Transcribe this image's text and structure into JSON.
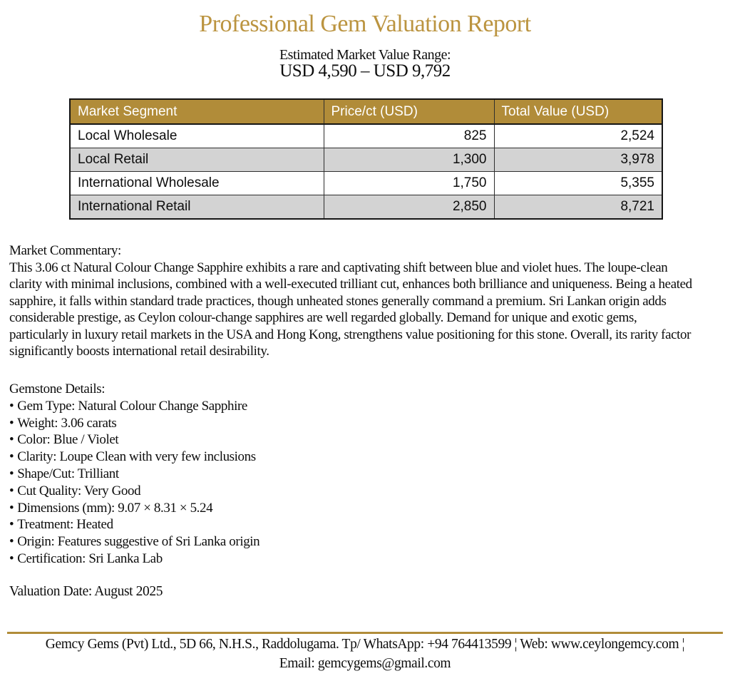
{
  "report": {
    "title": "Professional Gem Valuation Report",
    "value_range_label": "Estimated Market Value Range:",
    "value_range": "USD 4,590 – USD 9,792",
    "valuation_date": "Valuation Date: August 2025"
  },
  "colors": {
    "accent_gold_title": "#BB9440",
    "table_header_gold": "#B18C39",
    "row_stripe_gray": "#D3D3D3"
  },
  "table": {
    "headers": [
      "Market Segment",
      "Price/ct (USD)",
      "Total Value (USD)"
    ],
    "rows": [
      {
        "segment": "Local Wholesale",
        "price": "825",
        "total": "2,524"
      },
      {
        "segment": "Local Retail",
        "price": "1,300",
        "total": "3,978"
      },
      {
        "segment": "International Wholesale",
        "price": "1,750",
        "total": "5,355"
      },
      {
        "segment": "International Retail",
        "price": "2,850",
        "total": "8,721"
      }
    ]
  },
  "commentary": {
    "heading": "Market Commentary:",
    "text": "This 3.06 ct Natural Colour Change Sapphire exhibits a rare and captivating shift between blue and violet hues. The loupe-clean clarity with minimal inclusions, combined with a well-executed trilliant cut, enhances both brilliance and uniqueness. Being a heated sapphire, it falls within standard trade practices, though unheated stones generally command a premium. Sri Lankan origin adds considerable prestige, as Ceylon colour-change sapphires are well regarded globally. Demand for unique and exotic gems, particularly in luxury retail markets in the USA and Hong Kong, strengthens value positioning for this stone. Overall, its rarity factor significantly boosts international retail desirability."
  },
  "gemstone_details": {
    "heading": "Gemstone Details:",
    "bullet": "•",
    "items": [
      "Gem Type: Natural Colour Change Sapphire",
      "Weight: 3.06 carats",
      "Color: Blue / Violet",
      "Clarity: Loupe Clean with very few inclusions",
      "Shape/Cut: Trilliant",
      "Cut Quality: Very Good",
      "Dimensions (mm): 9.07 × 8.31 × 5.24",
      "Treatment: Heated",
      "Origin: Features suggestive of Sri Lanka origin",
      "Certification: Sri Lanka Lab"
    ]
  },
  "footer": {
    "line1": "Gemcy Gems (Pvt) Ltd., 5D 66, N.H.S., Raddolugama. Tp/ WhatsApp: +94 764413599 ¦ Web: www.ceylongemcy.com ¦",
    "line2": "Email: gemcygems@gmail.com"
  }
}
